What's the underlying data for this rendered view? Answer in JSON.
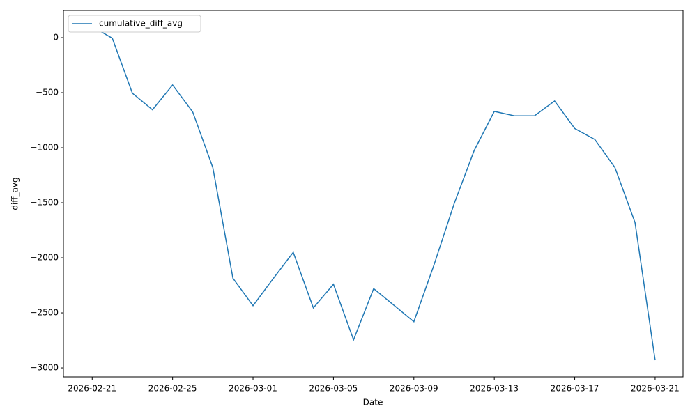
{
  "chart_data": {
    "type": "line",
    "x_label": "Date",
    "y_label": "diff_avg",
    "x": [
      "2026-02-21",
      "2026-02-22",
      "2026-02-23",
      "2026-02-24",
      "2026-02-25",
      "2026-02-26",
      "2026-02-27",
      "2026-02-28",
      "2026-03-01",
      "2026-03-02",
      "2026-03-03",
      "2026-03-04",
      "2026-03-05",
      "2026-03-06",
      "2026-03-07",
      "2026-03-08",
      "2026-03-09",
      "2026-03-10",
      "2026-03-11",
      "2026-03-12",
      "2026-03-13",
      "2026-03-14",
      "2026-03-15",
      "2026-03-16",
      "2026-03-17",
      "2026-03-18",
      "2026-03-19",
      "2026-03-20",
      "2026-03-21"
    ],
    "series": [
      {
        "name": "cumulative_diff_avg",
        "color": "#1f77b4",
        "values": [
          100,
          -5,
          -505,
          -655,
          -430,
          -675,
          -1180,
          -2185,
          -2435,
          -2190,
          -1950,
          -2455,
          -2240,
          -2745,
          -2280,
          -2430,
          -2580,
          -2065,
          -1510,
          -1025,
          -670,
          -710,
          -710,
          -575,
          -825,
          -925,
          -1180,
          -1680,
          -2930
        ]
      }
    ],
    "xlim": [
      "2026-02-19T13:40:00Z",
      "2026-03-22T09:20:00Z"
    ],
    "xticks": [
      "2026-02-21",
      "2026-02-25",
      "2026-03-01",
      "2026-03-05",
      "2026-03-09",
      "2026-03-13",
      "2026-03-17",
      "2026-03-21"
    ],
    "ylim": [
      -3082,
      247
    ],
    "yticks": [
      {
        "value": -3000,
        "label": "−3000"
      },
      {
        "value": -2500,
        "label": "−2500"
      },
      {
        "value": -2000,
        "label": "−2000"
      },
      {
        "value": -1500,
        "label": "−1500"
      },
      {
        "value": -1000,
        "label": "−1000"
      },
      {
        "value": -500,
        "label": "−500"
      },
      0
    ],
    "legend": "upper left",
    "grid": false
  }
}
